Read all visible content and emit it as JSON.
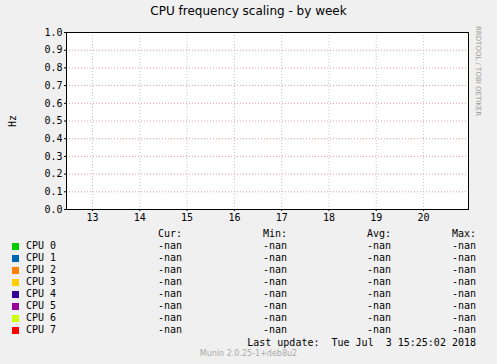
{
  "chart_data": {
    "type": "line",
    "title": "CPU frequency scaling - by week",
    "y_label": "Hz",
    "side_text": "RRDTOOL / TOBI OETIKER",
    "x": [
      13,
      14,
      15,
      16,
      17,
      18,
      19,
      20
    ],
    "xlim": [
      12.45,
      20.95
    ],
    "xticks": [
      13,
      14,
      15,
      16,
      17,
      18,
      19,
      20
    ],
    "ylim": [
      0,
      1
    ],
    "yticks": [
      {
        "value": 0,
        "label": "0.0"
      },
      {
        "value": 0.1,
        "label": "0.1"
      },
      {
        "value": 0.2,
        "label": "0.2"
      },
      {
        "value": 0.3,
        "label": "0.3"
      },
      {
        "value": 0.4,
        "label": "0.4"
      },
      {
        "value": 0.5,
        "label": "0.5"
      },
      {
        "value": 0.6,
        "label": "0.6"
      },
      {
        "value": 0.7,
        "label": "0.7"
      },
      {
        "value": 0.8,
        "label": "0.8"
      },
      {
        "value": 0.9,
        "label": "0.9"
      },
      {
        "value": 1,
        "label": "1.0"
      }
    ],
    "grid": true,
    "legend_columns": [
      "Cur:",
      "Min:",
      "Avg:",
      "Max:"
    ],
    "series": [
      {
        "name": "CPU 0",
        "color": "#00cc00",
        "values": [
          null,
          null,
          null,
          null,
          null,
          null,
          null,
          null
        ],
        "cur": "-nan",
        "min": "-nan",
        "avg": "-nan",
        "max": "-nan"
      },
      {
        "name": "CPU 1",
        "color": "#0066b3",
        "values": [
          null,
          null,
          null,
          null,
          null,
          null,
          null,
          null
        ],
        "cur": "-nan",
        "min": "-nan",
        "avg": "-nan",
        "max": "-nan"
      },
      {
        "name": "CPU 2",
        "color": "#ff8000",
        "values": [
          null,
          null,
          null,
          null,
          null,
          null,
          null,
          null
        ],
        "cur": "-nan",
        "min": "-nan",
        "avg": "-nan",
        "max": "-nan"
      },
      {
        "name": "CPU 3",
        "color": "#ffcc00",
        "values": [
          null,
          null,
          null,
          null,
          null,
          null,
          null,
          null
        ],
        "cur": "-nan",
        "min": "-nan",
        "avg": "-nan",
        "max": "-nan"
      },
      {
        "name": "CPU 4",
        "color": "#330099",
        "values": [
          null,
          null,
          null,
          null,
          null,
          null,
          null,
          null
        ],
        "cur": "-nan",
        "min": "-nan",
        "avg": "-nan",
        "max": "-nan"
      },
      {
        "name": "CPU 5",
        "color": "#990099",
        "values": [
          null,
          null,
          null,
          null,
          null,
          null,
          null,
          null
        ],
        "cur": "-nan",
        "min": "-nan",
        "avg": "-nan",
        "max": "-nan"
      },
      {
        "name": "CPU 6",
        "color": "#ccff00",
        "values": [
          null,
          null,
          null,
          null,
          null,
          null,
          null,
          null
        ],
        "cur": "-nan",
        "min": "-nan",
        "avg": "-nan",
        "max": "-nan"
      },
      {
        "name": "CPU 7",
        "color": "#ff0000",
        "values": [
          null,
          null,
          null,
          null,
          null,
          null,
          null,
          null
        ],
        "cur": "-nan",
        "min": "-nan",
        "avg": "-nan",
        "max": "-nan"
      }
    ],
    "last_update": "Last update:  Tue Jul  3 15:25:02 2018",
    "footer": "Munin 2.0.25-1+deb8u2"
  }
}
